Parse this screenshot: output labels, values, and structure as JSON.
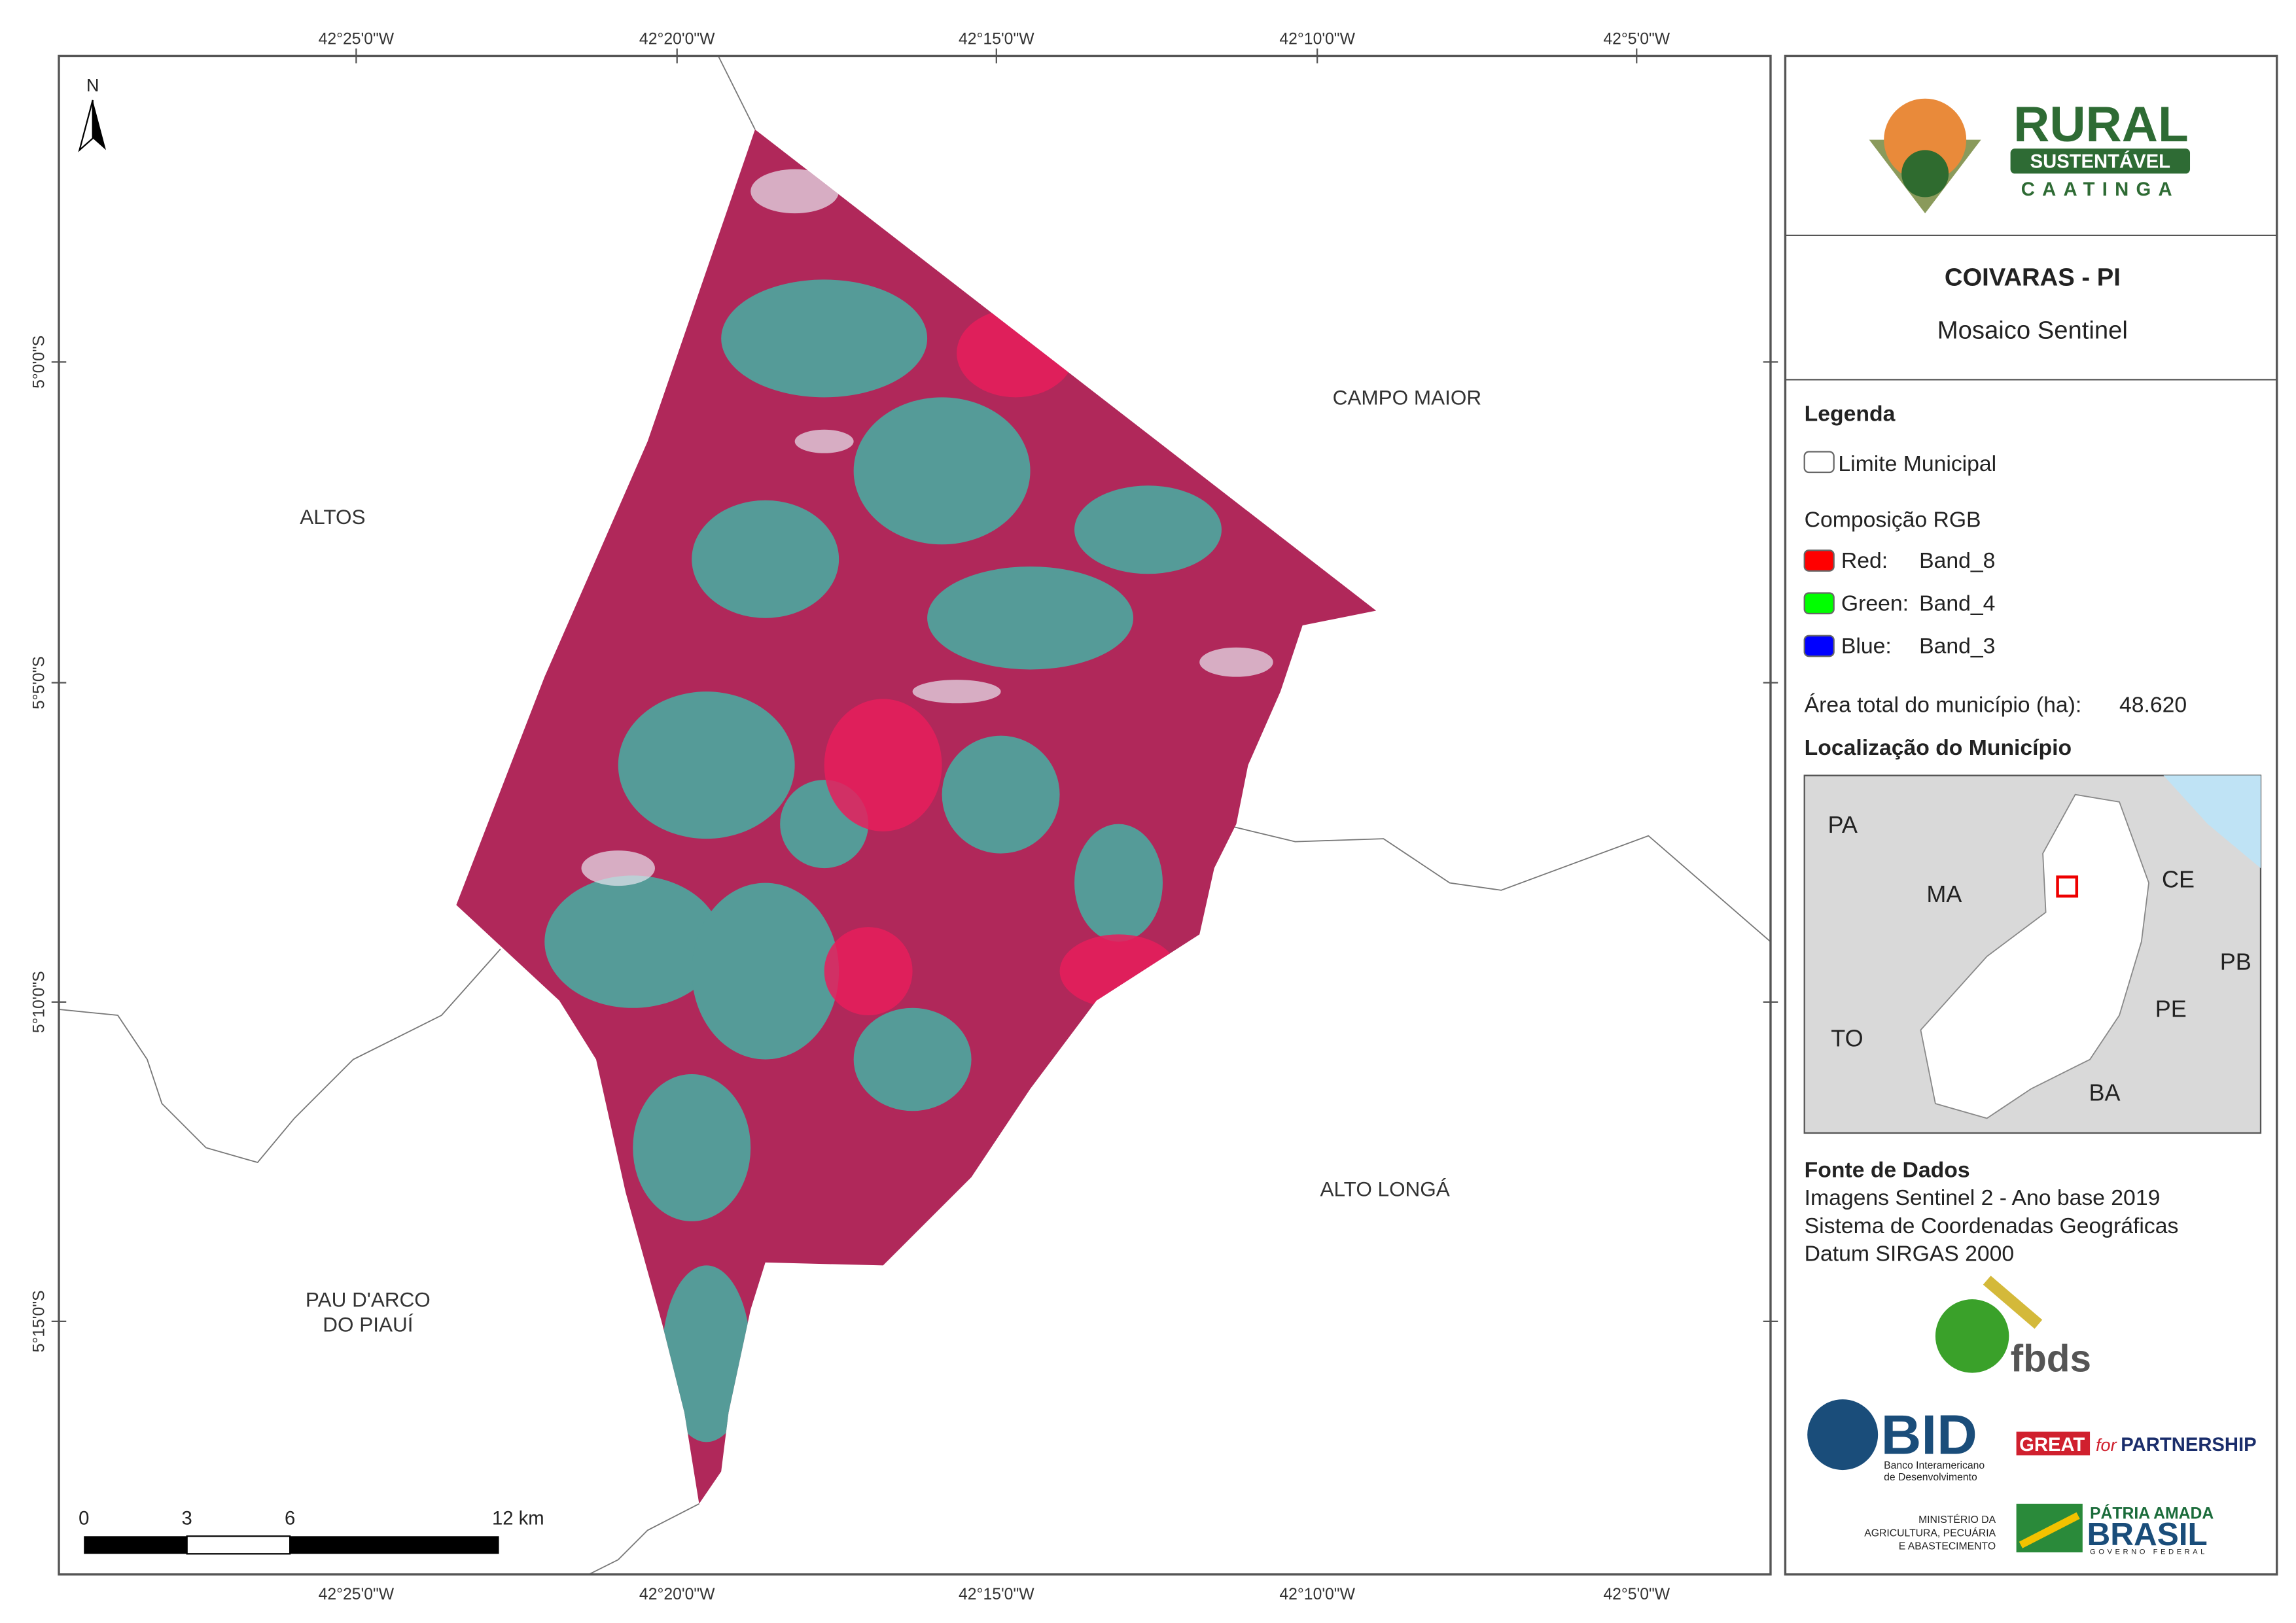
{
  "map": {
    "top_labels": [
      "42°25'0\"W",
      "42°20'0\"W",
      "42°15'0\"W",
      "42°10'0\"W",
      "42°5'0\"W"
    ],
    "bottom_labels": [
      "42°25'0\"W",
      "42°20'0\"W",
      "42°15'0\"W",
      "42°10'0\"W",
      "42°5'0\"W"
    ],
    "left_labels": [
      "5°0'0\"S",
      "5°5'0\"S",
      "5°10'0\"S",
      "5°15'0\"S"
    ],
    "north": "N",
    "places": [
      [
        "ALTOS"
      ],
      [
        "CAMPO MAIOR"
      ],
      [
        "ALTO LONGÁ"
      ],
      [
        "PAU D'ARCO",
        "DO PIAUÍ"
      ]
    ],
    "scale_labels": [
      "0",
      "3",
      "6",
      "12 km"
    ]
  },
  "panel": {
    "logo": {
      "title": "RURAL",
      "subtitle": "SUSTENTÁVEL",
      "tagline": "CAATINGA"
    },
    "title": "COIVARAS - PI",
    "subtitle": "Mosaico Sentinel",
    "legend": {
      "heading": "Legenda",
      "boundary": "Limite Municipal",
      "rgb_heading": "Composição RGB",
      "bands": [
        {
          "channel": "Red:",
          "band": "Band_8"
        },
        {
          "channel": "Green:",
          "band": "Band_4"
        },
        {
          "channel": "Blue:",
          "band": "Band_3"
        }
      ]
    },
    "area": {
      "label": "Área total do município (ha):",
      "value": "48.620"
    },
    "location": {
      "heading": "Localização do Município",
      "states": [
        "PA",
        "MA",
        "CE",
        "PB",
        "PE",
        "TO",
        "BA"
      ]
    },
    "sources": {
      "heading": "Fonte de Dados",
      "lines": [
        "Imagens Sentinel 2 - Ano base 2019",
        "Sistema de Coordenadas Geográficas",
        "Datum SIRGAS 2000"
      ]
    },
    "logos": {
      "fbds": "fbds",
      "bid": "BID",
      "bid_sub": [
        "Banco Interamericano",
        "de Desenvolvimento"
      ],
      "great": "GREAT",
      "great_for": "for",
      "partnership": "PARTNERSHIP",
      "ministry": [
        "MINISTÉRIO DA",
        "AGRICULTURA, PECUÁRIA",
        "E ABASTECIMENTO"
      ],
      "brasil_top": "PÁTRIA AMADA",
      "brasil": "BRASIL",
      "brasil_sub": "GOVERNO FEDERAL"
    }
  }
}
